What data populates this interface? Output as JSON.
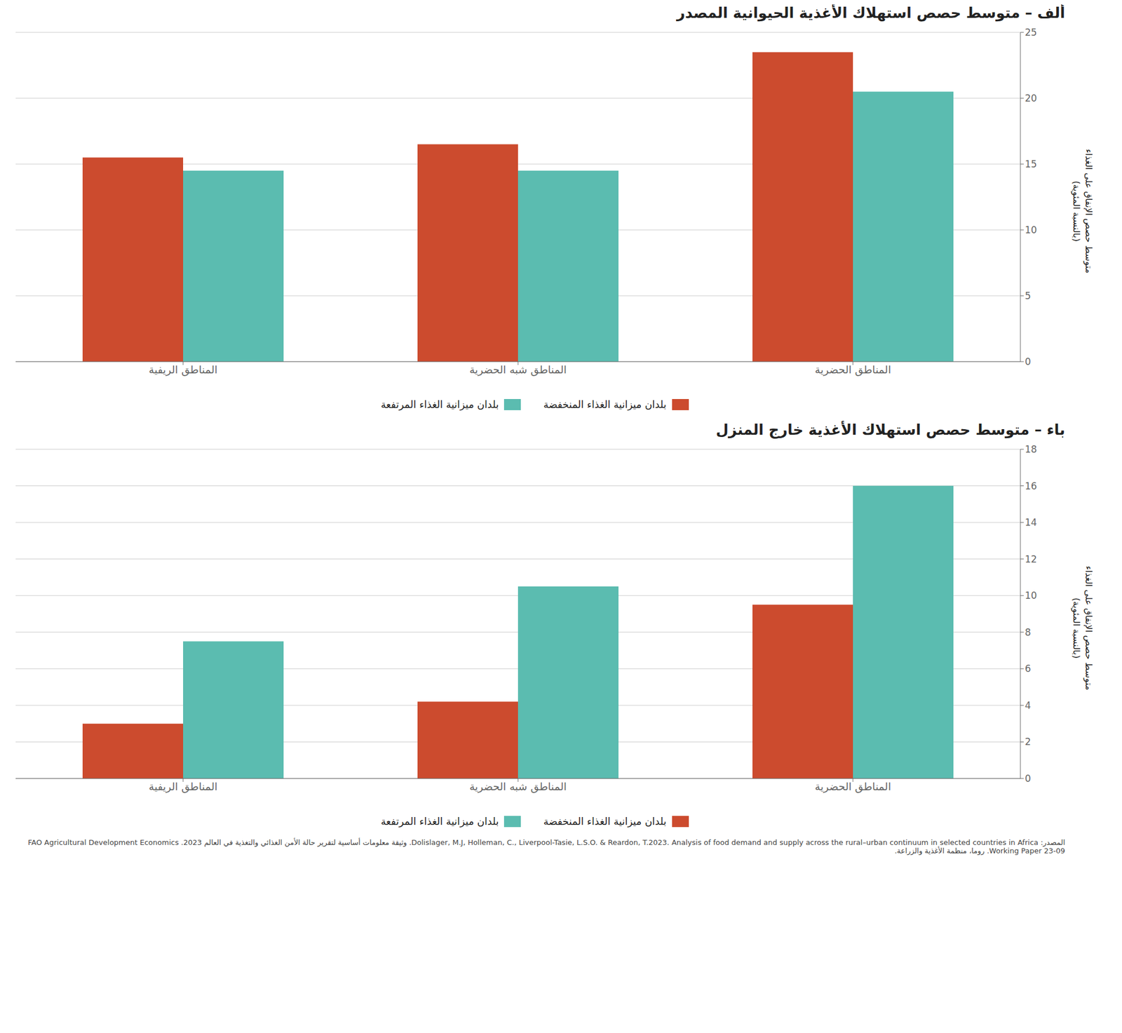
{
  "chart_data": [
    {
      "type": "bar",
      "title": "أﻟﻒ –  متوسط حصص استهلاك الأغذية الحيوانية المصدر",
      "categories": [
        "المناطق الريفية",
        "المناطق شبه الحضرية",
        "المناطق الحضرية"
      ],
      "series": [
        {
          "name": "بلدان ميزانية الغذاء المنخفضة",
          "color": "#cc4b2e",
          "values": [
            15.5,
            16.5,
            23.5
          ]
        },
        {
          "name": "بلدان ميزانية الغذاء المرتفعة",
          "color": "#5bbcb0",
          "values": [
            14.5,
            14.5,
            20.5
          ]
        }
      ],
      "ylim": [
        0,
        25
      ],
      "yticks": [
        0,
        5,
        10,
        15,
        20,
        25
      ],
      "ylabel": "متوسط حصص الإنفاق على الغذاء\n(بالنسبة المئوية)",
      "grid": true,
      "legend": "bottom"
    },
    {
      "type": "bar",
      "title": "باء –  متوسط حصص استهلاك الأغذية خارج المنزل",
      "categories": [
        "المناطق الريفية",
        "المناطق شبه الحضرية",
        "المناطق الحضرية"
      ],
      "series": [
        {
          "name": "بلدان ميزانية الغذاء المنخفضة",
          "color": "#cc4b2e",
          "values": [
            3.0,
            4.2,
            9.5
          ]
        },
        {
          "name": "بلدان ميزانية الغذاء المرتفعة",
          "color": "#5bbcb0",
          "values": [
            7.5,
            10.5,
            16.0
          ]
        }
      ],
      "ylim": [
        0,
        18
      ],
      "yticks": [
        0,
        2,
        4,
        6,
        8,
        10,
        12,
        14,
        16,
        18
      ],
      "ylabel": "متوسط حصص الإنفاق على الغذاء\n(بالنسبة المئوية)",
      "grid": true,
      "legend": "bottom",
      "annotations": [
        "المصدر: Dolislager, M.J, Holleman, C., Liverpool-Tasie, L.S.O. & Reardon, T.2023. Analysis of food demand and supply across the rural–urban continuum in selected countries in Africa. وثيقة معلومات أساسية لتقرير حالة الأمن الغذائي والتغذية في العالم 2023. FAO Agricultural Development Economics Working Paper 23-09. روما، منظمة الأغذية والزراعة."
      ]
    }
  ]
}
